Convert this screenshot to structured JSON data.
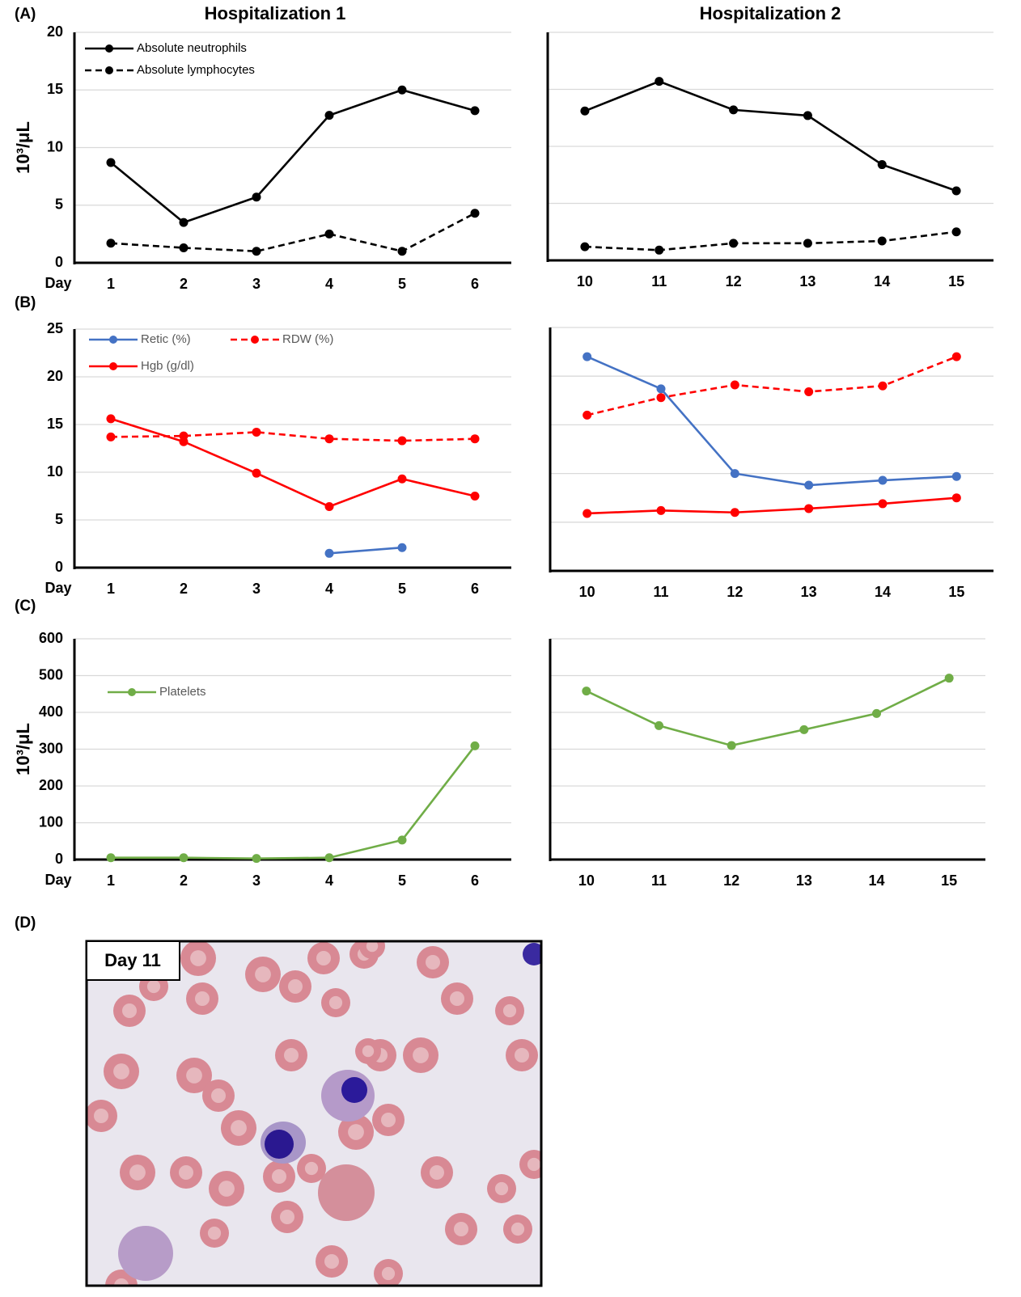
{
  "chart_data": [
    {
      "type": "line",
      "panel_label": "(A)",
      "title": "Hospitalization 1",
      "ylabel": "10³/μL",
      "xlabel": "Day",
      "x": [
        1,
        2,
        3,
        4,
        5,
        6
      ],
      "xlim": [
        0.5,
        6.5
      ],
      "xticks": [
        1,
        2,
        3,
        4,
        5,
        6
      ],
      "ylim": [
        0,
        20
      ],
      "yticks": [
        0,
        5,
        10,
        15,
        20
      ],
      "grid": true,
      "series": [
        {
          "name": "Absolute neutrophils",
          "color": "#000000",
          "dash": false,
          "values": [
            8.7,
            3.5,
            5.7,
            12.8,
            15,
            13.2
          ]
        },
        {
          "name": "Absolute lymphocytes",
          "color": "#000000",
          "dash": true,
          "values": [
            1.7,
            1.3,
            1.0,
            2.5,
            1.0,
            4.3
          ]
        }
      ]
    },
    {
      "type": "line",
      "title": "Hospitalization 2",
      "x": [
        10,
        11,
        12,
        13,
        14,
        15
      ],
      "xlim": [
        9.5,
        15.5
      ],
      "xticks": [
        10,
        11,
        12,
        13,
        14,
        15
      ],
      "ylim": [
        0,
        20
      ],
      "yticks": [
        0,
        5,
        10,
        15,
        20
      ],
      "grid": true,
      "ytick_labels": false,
      "series": [
        {
          "color": "#000000",
          "dash": false,
          "values": [
            13.1,
            15.7,
            13.2,
            12.7,
            8.4,
            6.1
          ]
        },
        {
          "color": "#000000",
          "dash": true,
          "values": [
            1.2,
            0.9,
            1.5,
            1.5,
            1.7,
            2.5
          ]
        }
      ]
    },
    {
      "type": "line",
      "panel_label": "(B)",
      "xlabel": "Day",
      "x": [
        1,
        2,
        3,
        4,
        5,
        6
      ],
      "xlim": [
        0.5,
        6.5
      ],
      "xticks": [
        1,
        2,
        3,
        4,
        5,
        6
      ],
      "ylim": [
        0,
        25
      ],
      "yticks": [
        0,
        5,
        10,
        15,
        20,
        25
      ],
      "grid": true,
      "series": [
        {
          "name": "Retic (%)",
          "color": "#4472c4",
          "dash": false,
          "values": [
            null,
            null,
            null,
            1.5,
            2.1,
            null
          ]
        },
        {
          "name": "RDW (%)",
          "color": "#ff0000",
          "dash": true,
          "values": [
            13.7,
            13.8,
            14.2,
            13.5,
            13.3,
            13.5
          ]
        },
        {
          "name": "Hgb (g/dl)",
          "color": "#ff0000",
          "dash": false,
          "values": [
            15.6,
            13.2,
            9.9,
            6.4,
            9.3,
            7.5
          ]
        }
      ]
    },
    {
      "type": "line",
      "x": [
        10,
        11,
        12,
        13,
        14,
        15
      ],
      "xlim": [
        9.5,
        15.5
      ],
      "xticks": [
        10,
        11,
        12,
        13,
        14,
        15
      ],
      "ylim": [
        0,
        25
      ],
      "yticks": [
        0,
        5,
        10,
        15,
        20,
        25
      ],
      "grid": true,
      "ytick_labels": false,
      "series": [
        {
          "color": "#4472c4",
          "dash": false,
          "values": [
            22,
            18.7,
            10,
            8.8,
            9.3,
            9.7
          ]
        },
        {
          "color": "#ff0000",
          "dash": true,
          "values": [
            16,
            17.8,
            19.1,
            18.4,
            19,
            22
          ]
        },
        {
          "color": "#ff0000",
          "dash": false,
          "values": [
            5.9,
            6.2,
            6.0,
            6.4,
            6.9,
            7.5
          ]
        }
      ]
    },
    {
      "type": "line",
      "panel_label": "(C)",
      "ylabel": "10³/μL",
      "xlabel": "Day",
      "x": [
        1,
        2,
        3,
        4,
        5,
        6
      ],
      "xlim": [
        0.5,
        6.5
      ],
      "xticks": [
        1,
        2,
        3,
        4,
        5,
        6
      ],
      "ylim": [
        0,
        600
      ],
      "yticks": [
        0,
        100,
        200,
        300,
        400,
        500,
        600
      ],
      "grid": true,
      "series": [
        {
          "name": "Platelets",
          "color": "#70ad47",
          "dash": false,
          "values": [
            5,
            5,
            3,
            5,
            53,
            309
          ]
        }
      ]
    },
    {
      "type": "line",
      "x": [
        10,
        11,
        12,
        13,
        14,
        15
      ],
      "xlim": [
        9.5,
        15.5
      ],
      "xticks": [
        10,
        11,
        12,
        13,
        14,
        15
      ],
      "ylim": [
        0,
        600
      ],
      "yticks": [
        0,
        100,
        200,
        300,
        400,
        500,
        600
      ],
      "grid": true,
      "ytick_labels": false,
      "series": [
        {
          "color": "#70ad47",
          "dash": false,
          "values": [
            458,
            364,
            310,
            353,
            397,
            493
          ]
        }
      ]
    }
  ],
  "image_panel": {
    "panel_label": "(D)",
    "caption": "Day 11"
  }
}
